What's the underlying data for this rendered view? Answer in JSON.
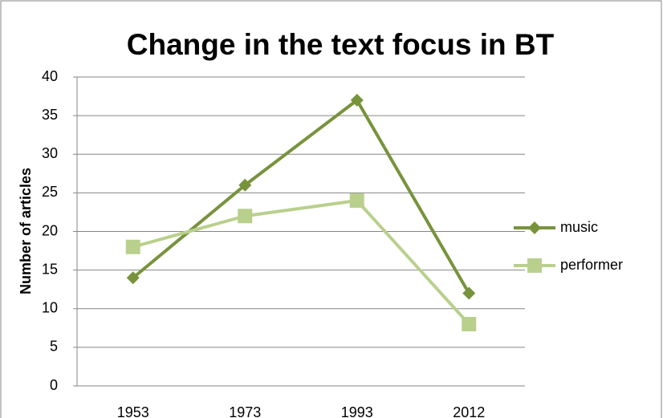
{
  "chart_data": {
    "type": "line",
    "title": "Change in the text focus in BT",
    "y_label": "Number of articles",
    "categories": [
      "1953",
      "1973",
      "1993",
      "2012"
    ],
    "series": [
      {
        "name": "music",
        "color": "#77933c",
        "marker": "diamond",
        "values": [
          14,
          26,
          37,
          12
        ]
      },
      {
        "name": "performer",
        "color": "#b9d08d",
        "marker": "square",
        "values": [
          18,
          22,
          24,
          8
        ]
      }
    ],
    "ylim": [
      0,
      40
    ],
    "yticks": [
      0,
      5,
      10,
      15,
      20,
      25,
      30,
      35,
      40
    ],
    "grid": true,
    "legend": "right"
  }
}
